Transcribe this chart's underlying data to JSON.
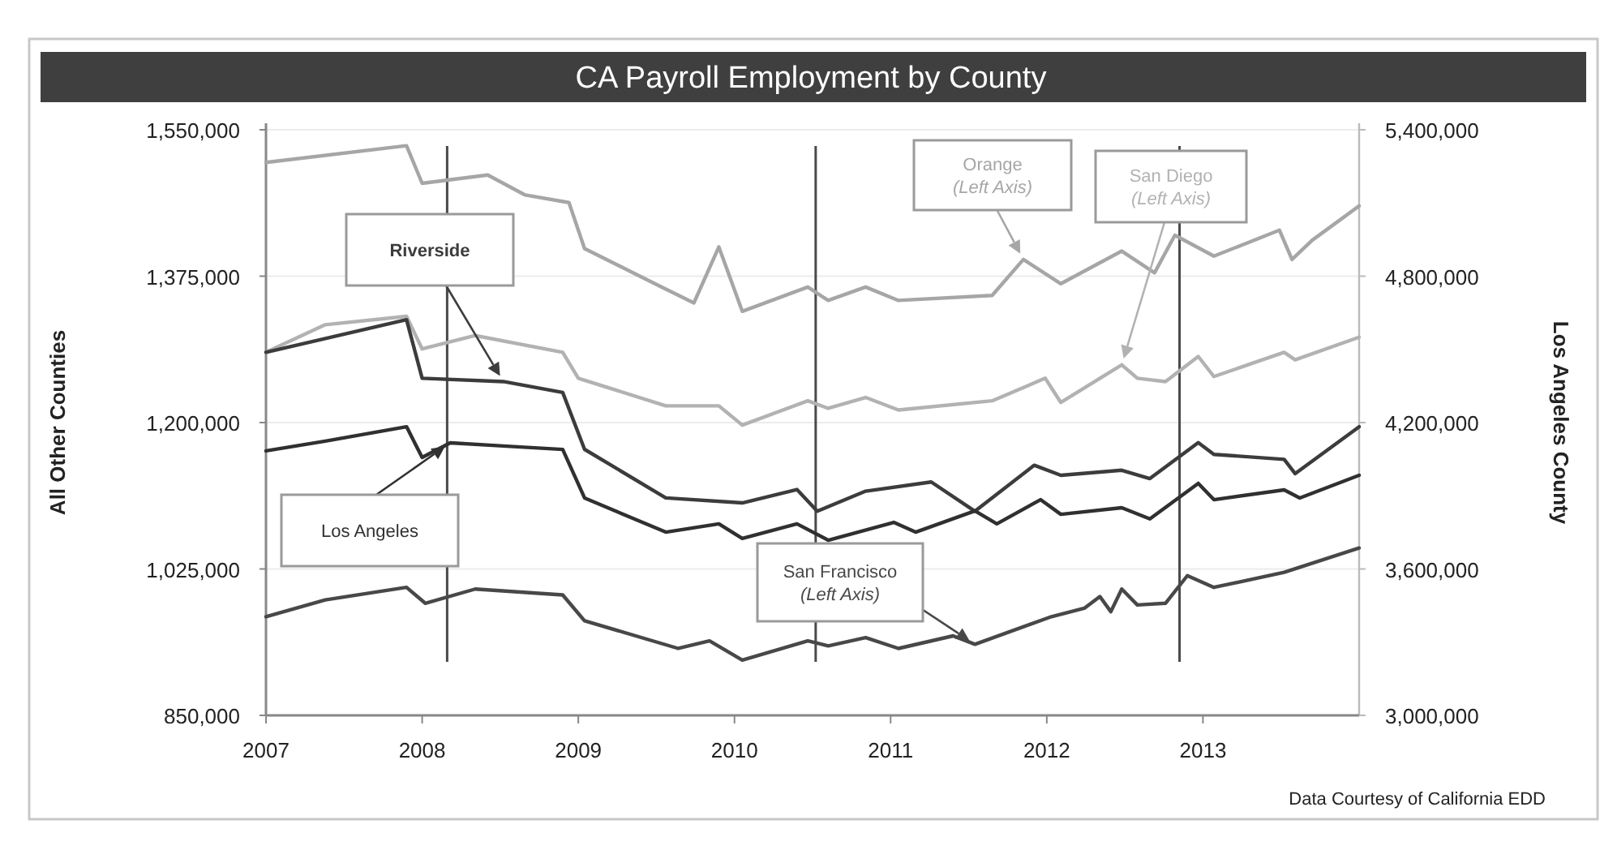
{
  "chart_data": {
    "type": "line",
    "title": "CA Payroll Employment by County",
    "ylabel": "All Other Counties",
    "y2label": "Los Angeles County",
    "xlim": [
      2007,
      2014
    ],
    "xticks": [
      2007,
      2008,
      2009,
      2010,
      2011,
      2012,
      2013
    ],
    "ylim": [
      850000,
      1550000
    ],
    "yticks": [
      {
        "value": 850000,
        "label": "850,000"
      },
      {
        "value": 1025000,
        "label": "1,025,000"
      },
      {
        "value": 1200000,
        "label": "1,200,000"
      },
      {
        "value": 1375000,
        "label": "1,375,000"
      },
      {
        "value": 1550000,
        "label": "1,550,000"
      }
    ],
    "y2lim": [
      3000000,
      5400000
    ],
    "y2ticks": [
      {
        "value": 3000000,
        "label": "3,000,000"
      },
      {
        "value": 3600000,
        "label": "3,600,000"
      },
      {
        "value": 4200000,
        "label": "4,200,000"
      },
      {
        "value": 4800000,
        "label": "4,800,000"
      },
      {
        "value": 5400000,
        "label": "5,400,000"
      }
    ],
    "grid": "y",
    "legend": false,
    "marker": "none",
    "line_style": "solid",
    "series": [
      {
        "name": "Orange (Left Axis)",
        "color": "#a6a6a6",
        "x": [
          2007.0,
          2007.9,
          2008.0,
          2008.42,
          2008.66,
          2008.94,
          2009.04,
          2009.49,
          2009.74,
          2009.9,
          2010.05,
          2010.47,
          2010.6,
          2010.84,
          2011.05,
          2011.65,
          2011.85,
          2012.09,
          2012.48,
          2012.69,
          2012.82,
          2013.07,
          2013.49,
          2013.57,
          2013.7,
          2014.0
        ],
        "values": [
          1511000,
          1531000,
          1486000,
          1496000,
          1472000,
          1463000,
          1408000,
          1366000,
          1343000,
          1410000,
          1333000,
          1362000,
          1346000,
          1362000,
          1346000,
          1352000,
          1395000,
          1366000,
          1405000,
          1379000,
          1424000,
          1399000,
          1430000,
          1395000,
          1418000,
          1459000
        ]
      },
      {
        "name": "San Diego (Left Axis)",
        "color": "#b2b2b2",
        "x": [
          2007.0,
          2007.38,
          2007.9,
          2008.0,
          2008.34,
          2008.9,
          2009.0,
          2009.56,
          2009.9,
          2010.05,
          2010.47,
          2010.6,
          2010.84,
          2011.05,
          2011.65,
          2011.99,
          2012.09,
          2012.48,
          2012.58,
          2012.76,
          2012.97,
          2013.07,
          2013.52,
          2013.59,
          2014.0
        ],
        "values": [
          1284000,
          1317000,
          1327000,
          1288000,
          1304000,
          1284000,
          1253000,
          1220000,
          1220000,
          1197000,
          1226000,
          1217000,
          1230000,
          1215000,
          1226000,
          1253000,
          1224000,
          1269000,
          1253000,
          1249000,
          1279000,
          1255000,
          1284000,
          1275000,
          1302000
        ]
      },
      {
        "name": "Riverside",
        "color": "#3c3c3c",
        "x": [
          2007.0,
          2007.9,
          2008.0,
          2008.52,
          2008.9,
          2009.04,
          2009.56,
          2010.05,
          2010.4,
          2010.53,
          2010.84,
          2011.26,
          2011.54,
          2011.92,
          2012.09,
          2012.48,
          2012.66,
          2012.97,
          2013.07,
          2013.52,
          2013.59,
          2014.0
        ],
        "values": [
          1284000,
          1323000,
          1253000,
          1249000,
          1236000,
          1168000,
          1110000,
          1104000,
          1120000,
          1094000,
          1118000,
          1129000,
          1094000,
          1149000,
          1137000,
          1143000,
          1133000,
          1176000,
          1162000,
          1156000,
          1139000,
          1195000
        ]
      },
      {
        "name": "Los Angeles",
        "color": "#303030",
        "axis": "y2",
        "x": [
          2007.0,
          2007.38,
          2007.9,
          2008.0,
          2008.18,
          2008.52,
          2008.9,
          2009.04,
          2009.56,
          2009.9,
          2010.05,
          2010.4,
          2010.6,
          2011.02,
          2011.16,
          2011.54,
          2011.68,
          2011.96,
          2012.09,
          2012.48,
          2012.66,
          2012.97,
          2013.07,
          2013.52,
          2013.62,
          2014.0
        ],
        "values": [
          4084000,
          4124000,
          4183000,
          4057000,
          4117000,
          4104000,
          4090000,
          3891000,
          3751000,
          3785000,
          3725000,
          3785000,
          3718000,
          3791000,
          3751000,
          3838000,
          3785000,
          3884000,
          3824000,
          3851000,
          3805000,
          3951000,
          3884000,
          3924000,
          3891000,
          3984000
        ]
      },
      {
        "name": "San Francisco (Left Axis)",
        "color": "#484848",
        "x": [
          2007.0,
          2007.38,
          2007.9,
          2008.02,
          2008.34,
          2008.9,
          2009.04,
          2009.64,
          2009.84,
          2010.05,
          2010.47,
          2010.6,
          2010.84,
          2011.05,
          2011.4,
          2011.54,
          2012.03,
          2012.24,
          2012.34,
          2012.41,
          2012.48,
          2012.58,
          2012.76,
          2012.9,
          2013.07,
          2013.52,
          2014.0
        ],
        "values": [
          968000,
          988000,
          1003000,
          984000,
          1001000,
          994000,
          963000,
          930000,
          939000,
          916000,
          939000,
          933000,
          943000,
          930000,
          945000,
          935000,
          968000,
          978000,
          992000,
          974000,
          1001000,
          982000,
          984000,
          1017000,
          1003000,
          1021000,
          1050000
        ]
      }
    ],
    "ref_lines": [
      {
        "axis": "x",
        "value": 2008.16,
        "color": "#4a4a4a"
      },
      {
        "axis": "x",
        "value": 2010.52,
        "color": "#4a4a4a"
      },
      {
        "axis": "x",
        "value": 2012.85,
        "color": "#4a4a4a"
      }
    ],
    "annotations": [
      "Data Courtesy of California EDD"
    ]
  }
}
